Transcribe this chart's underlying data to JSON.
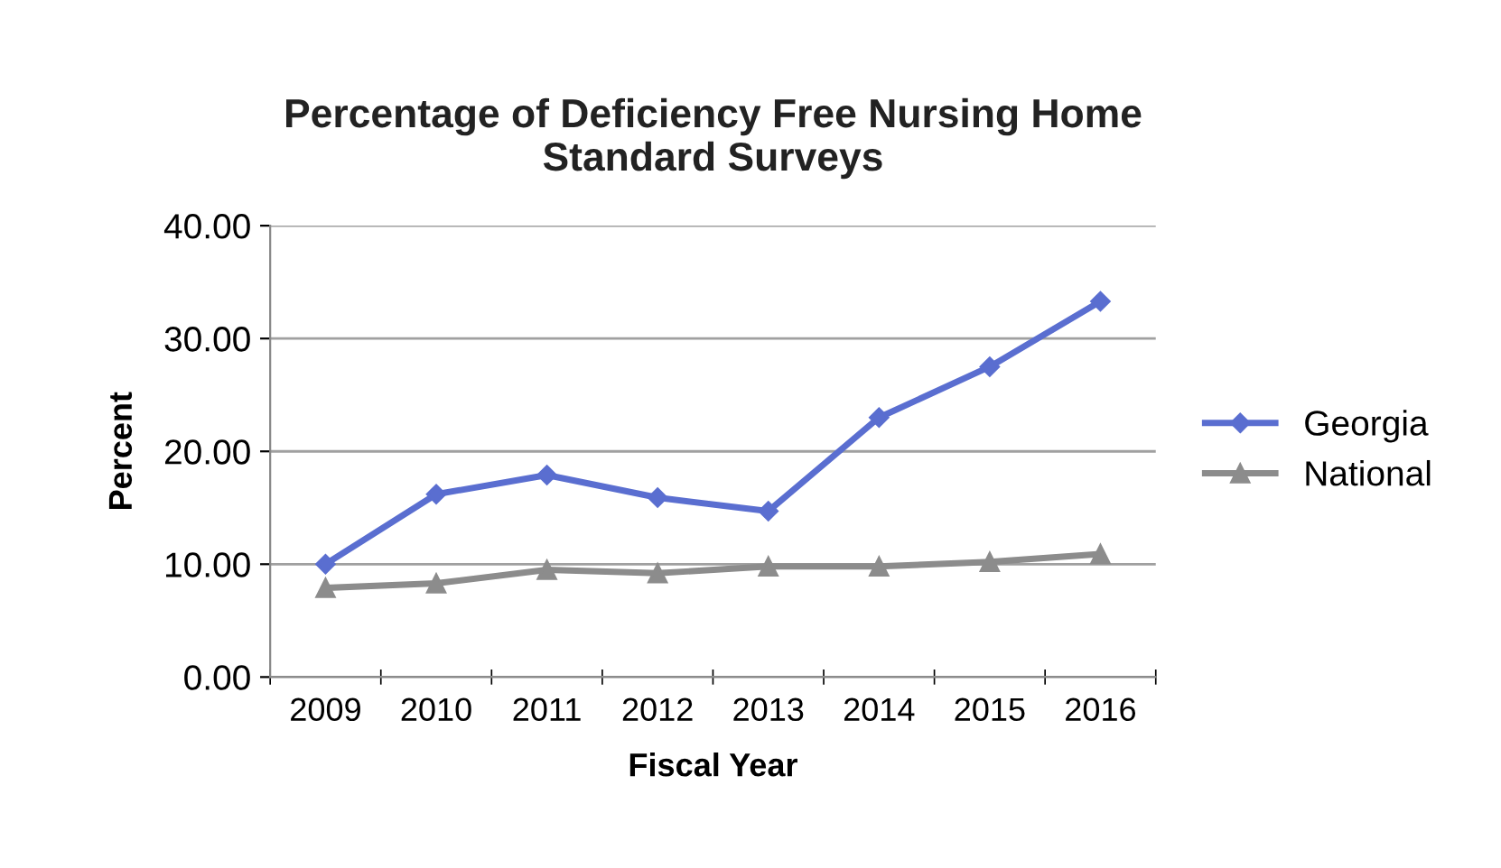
{
  "chart_data": {
    "type": "line",
    "title": "Percentage of Deficiency Free Nursing Home\nStandard Surveys",
    "xlabel": "Fiscal Year",
    "ylabel": "Percent",
    "categories": [
      "2009",
      "2010",
      "2011",
      "2012",
      "2013",
      "2014",
      "2015",
      "2016"
    ],
    "series": [
      {
        "name": "Georgia",
        "color": "#5a6ed0",
        "marker": "diamond",
        "values": [
          10.0,
          16.2,
          17.9,
          15.9,
          14.7,
          23.0,
          27.5,
          33.3
        ]
      },
      {
        "name": "National",
        "color": "#8c8c8c",
        "marker": "triangle",
        "values": [
          7.9,
          8.3,
          9.5,
          9.2,
          9.8,
          9.8,
          10.2,
          10.9
        ]
      }
    ],
    "ylim": [
      0,
      40
    ],
    "yticks": [
      {
        "value": 0,
        "label": "0.00"
      },
      {
        "value": 10,
        "label": "10.00"
      },
      {
        "value": 20,
        "label": "20.00"
      },
      {
        "value": 30,
        "label": "30.00"
      },
      {
        "value": 40,
        "label": "40.00"
      }
    ],
    "grid": "y",
    "legend": "right",
    "line_style": "solid"
  }
}
